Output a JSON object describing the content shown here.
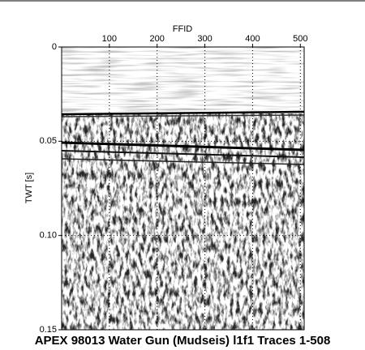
{
  "chart_data": {
    "type": "seismic",
    "title": "APEX 98013 Water Gun (Mudseis) l1f1 Traces 1-508",
    "xlabel": "FFID",
    "ylabel": "TWT [s]",
    "xlim": [
      0,
      508
    ],
    "xticks": [
      100,
      200,
      300,
      400,
      500
    ],
    "ylim": [
      0,
      0.15
    ],
    "yticks": [
      0,
      0.05,
      {
        "value": 0.1,
        "label": "0.10"
      },
      0.15
    ],
    "grid": true
  }
}
